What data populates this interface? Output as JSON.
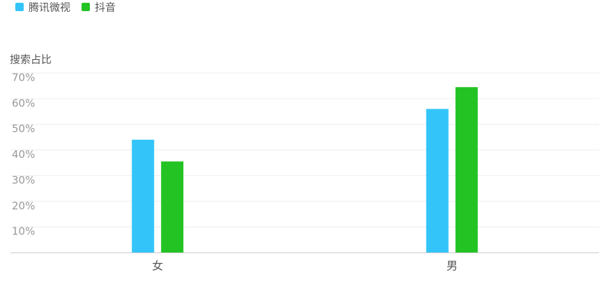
{
  "chart_data": {
    "type": "bar",
    "y_label": "搜索占比",
    "categories": [
      "女",
      "男"
    ],
    "series": [
      {
        "name": "腾讯微视",
        "color": "#33c5f9",
        "values": [
          44,
          56
        ]
      },
      {
        "name": "抖音",
        "color": "#22c322",
        "values": [
          35.5,
          64.5
        ]
      }
    ],
    "ylim": [
      0,
      70
    ],
    "yticks": [
      {
        "value": 10,
        "label": "10%"
      },
      {
        "value": 20,
        "label": "20%"
      },
      {
        "value": 30,
        "label": "30%"
      },
      {
        "value": 40,
        "label": "40%"
      },
      {
        "value": 50,
        "label": "50%"
      },
      {
        "value": 60,
        "label": "60%"
      },
      {
        "value": 70,
        "label": "70%"
      }
    ],
    "grid": true
  }
}
